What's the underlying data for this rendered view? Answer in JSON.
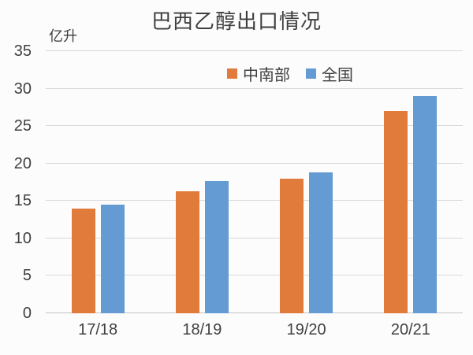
{
  "chart_data": {
    "type": "bar",
    "title": "巴西乙醇出口情况",
    "ylabel": "亿升",
    "xlabel": "",
    "categories": [
      "17/18",
      "18/19",
      "19/20",
      "20/21"
    ],
    "series": [
      {
        "name": "中南部",
        "color": "#E07B3B",
        "values": [
          14.0,
          16.3,
          18.0,
          27.0
        ]
      },
      {
        "name": "全国",
        "color": "#639BD2",
        "values": [
          14.5,
          17.7,
          18.8,
          29.0
        ]
      }
    ],
    "ylim": [
      0,
      35
    ],
    "y_ticks": [
      0,
      5,
      10,
      15,
      20,
      25,
      30,
      35
    ],
    "grid": true,
    "legend_position": "top-center-inside",
    "colors": {
      "gridline": "#D9D9D9",
      "axis_line": "#C3C3C3",
      "text": "#404040",
      "background": "#FCFCFC"
    }
  }
}
